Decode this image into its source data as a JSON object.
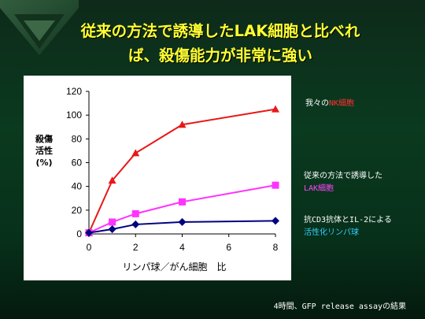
{
  "title_line1": "従来の方法で誘導したLAK細胞と比べれ",
  "title_line2": "ば、殺傷能力が非常に強い",
  "chart_data": {
    "type": "line",
    "x": [
      0,
      1,
      2,
      4,
      8
    ],
    "xticks": [
      "0",
      "2",
      "4",
      "6",
      "8"
    ],
    "yticks": [
      "0",
      "20",
      "40",
      "60",
      "80",
      "100",
      "120"
    ],
    "xlabel": "リンパ球／がん細胞　比",
    "ylabel_lines": [
      "殺傷",
      "活性",
      "(%)"
    ],
    "xlim": [
      0,
      8
    ],
    "ylim": [
      0,
      120
    ],
    "grid": false,
    "series": [
      {
        "name": "我々のNK細胞",
        "values": [
          1,
          45,
          68,
          92,
          105
        ],
        "color": "#e81818",
        "marker": "triangle"
      },
      {
        "name": "従来の方法で誘導したLAK細胞",
        "values": [
          1,
          10,
          17,
          27,
          41
        ],
        "color": "#ff33ff",
        "marker": "square"
      },
      {
        "name": "抗CD3抗体とIL-2による活性化リンパ球",
        "values": [
          1,
          4,
          8,
          10,
          11
        ],
        "color": "#000080",
        "marker": "diamond"
      }
    ]
  },
  "legend": {
    "nk_prefix": "我々の",
    "nk_highlight": "NK細胞",
    "lak_line1": "従来の方法で誘導した",
    "lak_highlight": "LAK細胞",
    "cd3_line1": "抗CD3抗体とIL-2による",
    "cd3_highlight": "活性化リンパ球"
  },
  "footnote": "4時間、GFP release assayの結果",
  "colors": {
    "title": "#ffff33",
    "background": "#0a3a1f"
  }
}
